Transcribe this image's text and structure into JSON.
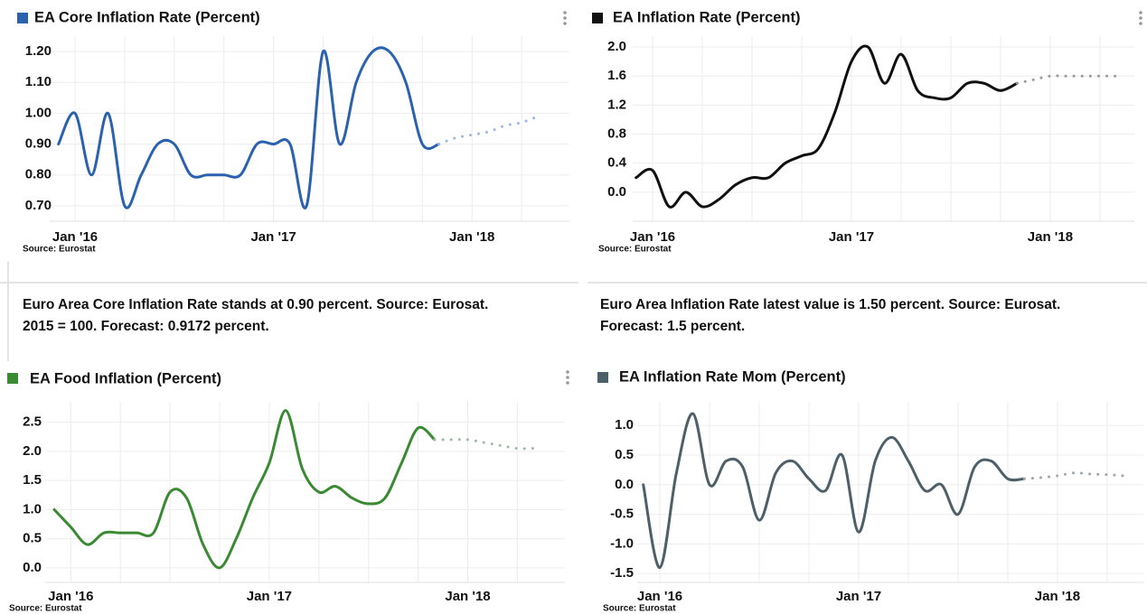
{
  "chart_data": [
    {
      "type": "line",
      "title": "EA  Core Inflation Rate (Percent)",
      "source": "Source: Eurostat",
      "description": "Euro Area Core Inflation Rate stands at 0.90 percent. Source: Eurosat. 2015 = 100. Forecast: 0.9172 percent.",
      "categories": [
        null,
        "Jan '16",
        null,
        null,
        null,
        null,
        null,
        null,
        null,
        null,
        null,
        null,
        null,
        "Jan '17",
        null,
        null,
        null,
        null,
        null,
        null,
        null,
        null,
        null,
        null,
        null,
        "Jan '18",
        null,
        null,
        null,
        null
      ],
      "ylim": [
        0.65,
        1.25
      ],
      "yticks": [
        {
          "value": 0.7,
          "label": "0.70"
        },
        {
          "value": 0.8,
          "label": "0.80"
        },
        {
          "value": 0.9,
          "label": "0.90"
        },
        {
          "value": 1.0,
          "label": "1.00"
        },
        {
          "value": 1.1,
          "label": "1.10"
        },
        {
          "value": 1.2,
          "label": "1.20"
        }
      ],
      "grid": true,
      "series": [
        {
          "color": "#2a62b0",
          "style": "solid",
          "values": [
            0.9,
            1.0,
            0.8,
            1.0,
            0.7,
            0.8,
            0.9,
            0.9,
            0.8,
            0.8,
            0.8,
            0.8,
            0.9,
            0.9,
            0.9,
            0.7,
            1.2,
            0.9,
            1.1,
            1.2,
            1.2,
            1.1,
            0.9,
            0.9,
            null,
            null,
            null,
            null,
            null,
            null
          ]
        },
        {
          "color": "#9ab8e0",
          "style": "dotted",
          "values": [
            null,
            null,
            null,
            null,
            null,
            null,
            null,
            null,
            null,
            null,
            null,
            null,
            null,
            null,
            null,
            null,
            null,
            null,
            null,
            null,
            null,
            null,
            null,
            0.9,
            0.92,
            0.93,
            0.94,
            0.96,
            0.97,
            0.99
          ]
        }
      ]
    },
    {
      "type": "line",
      "title": "EA Inflation Rate (Percent)",
      "source": "Source: Eurostat",
      "description": "Euro Area Inflation Rate latest value is 1.50 percent. Source: Eurosat. Forecast: 1.5 percent.",
      "categories": [
        null,
        "Jan '16",
        null,
        null,
        null,
        null,
        null,
        null,
        null,
        null,
        null,
        null,
        null,
        "Jan '17",
        null,
        null,
        null,
        null,
        null,
        null,
        null,
        null,
        null,
        null,
        null,
        "Jan '18",
        null,
        null,
        null,
        null
      ],
      "ylim": [
        -0.4,
        2.15
      ],
      "yticks": [
        {
          "value": 0.0,
          "label": "0.0"
        },
        0.4,
        0.8,
        1.2,
        1.6,
        {
          "value": 2.0,
          "label": "2.0"
        }
      ],
      "grid": true,
      "series": [
        {
          "color": "#111111",
          "style": "solid",
          "values": [
            0.2,
            0.3,
            -0.2,
            0.0,
            -0.2,
            -0.1,
            0.1,
            0.2,
            0.2,
            0.4,
            0.5,
            0.6,
            1.1,
            1.8,
            2.0,
            1.5,
            1.9,
            1.4,
            1.3,
            1.3,
            1.5,
            1.5,
            1.4,
            1.5,
            null,
            null,
            null,
            null,
            null,
            null
          ]
        },
        {
          "color": "#9a9a9a",
          "style": "dotted",
          "values": [
            null,
            null,
            null,
            null,
            null,
            null,
            null,
            null,
            null,
            null,
            null,
            null,
            null,
            null,
            null,
            null,
            null,
            null,
            null,
            null,
            null,
            null,
            null,
            1.5,
            1.55,
            1.6,
            1.6,
            1.6,
            1.6,
            1.6
          ]
        }
      ]
    },
    {
      "type": "line",
      "title": "EA  Food Inflation (Percent)",
      "source": "Source: Eurostat",
      "categories": [
        null,
        "Jan '16",
        null,
        null,
        null,
        null,
        null,
        null,
        null,
        null,
        null,
        null,
        null,
        "Jan '17",
        null,
        null,
        null,
        null,
        null,
        null,
        null,
        null,
        null,
        null,
        null,
        "Jan '18",
        null,
        null,
        null,
        null
      ],
      "ylim": [
        -0.25,
        2.85
      ],
      "yticks": [
        {
          "value": 0.0,
          "label": "0.0"
        },
        0.5,
        {
          "value": 1.0,
          "label": "1.0"
        },
        1.5,
        {
          "value": 2.0,
          "label": "2.0"
        },
        2.5
      ],
      "grid": true,
      "series": [
        {
          "color": "#3a8a33",
          "style": "solid",
          "values": [
            1.0,
            0.7,
            0.4,
            0.6,
            0.6,
            0.6,
            0.6,
            1.3,
            1.2,
            0.4,
            0.0,
            0.5,
            1.2,
            1.8,
            2.7,
            1.7,
            1.3,
            1.4,
            1.2,
            1.1,
            1.2,
            1.8,
            2.4,
            2.2,
            null,
            null,
            null,
            null,
            null,
            null
          ]
        },
        {
          "color": "#a3b8a3",
          "style": "dotted",
          "values": [
            null,
            null,
            null,
            null,
            null,
            null,
            null,
            null,
            null,
            null,
            null,
            null,
            null,
            null,
            null,
            null,
            null,
            null,
            null,
            null,
            null,
            null,
            null,
            2.2,
            2.2,
            2.2,
            2.15,
            2.1,
            2.05,
            2.05
          ]
        }
      ]
    },
    {
      "type": "line",
      "title": "EA Inflation Rate Mom (Percent)",
      "source": "Source: Eurostat",
      "categories": [
        null,
        "Jan '16",
        null,
        null,
        null,
        null,
        null,
        null,
        null,
        null,
        null,
        null,
        null,
        "Jan '17",
        null,
        null,
        null,
        null,
        null,
        null,
        null,
        null,
        null,
        null,
        null,
        "Jan '18",
        null,
        null,
        null,
        null
      ],
      "ylim": [
        -1.65,
        1.4
      ],
      "yticks": [
        {
          "value": -1.5,
          "label": "-1.5"
        },
        {
          "value": -1.0,
          "label": "-1.0"
        },
        -0.5,
        {
          "value": 0.0,
          "label": "0.0"
        },
        0.5,
        {
          "value": 1.0,
          "label": "1.0"
        }
      ],
      "grid": true,
      "series": [
        {
          "color": "#4d5f68",
          "style": "solid",
          "values": [
            0.0,
            -1.4,
            0.2,
            1.2,
            0.0,
            0.4,
            0.3,
            -0.6,
            0.2,
            0.4,
            0.1,
            -0.1,
            0.5,
            -0.8,
            0.4,
            0.8,
            0.4,
            -0.1,
            0.0,
            -0.5,
            0.3,
            0.4,
            0.1,
            0.1,
            null,
            null,
            null,
            null,
            null,
            null
          ]
        },
        {
          "color": "#a0a8ad",
          "style": "dotted",
          "values": [
            null,
            null,
            null,
            null,
            null,
            null,
            null,
            null,
            null,
            null,
            null,
            null,
            null,
            null,
            null,
            null,
            null,
            null,
            null,
            null,
            null,
            null,
            null,
            0.1,
            0.12,
            0.15,
            0.2,
            0.18,
            0.17,
            0.15
          ]
        }
      ]
    }
  ]
}
